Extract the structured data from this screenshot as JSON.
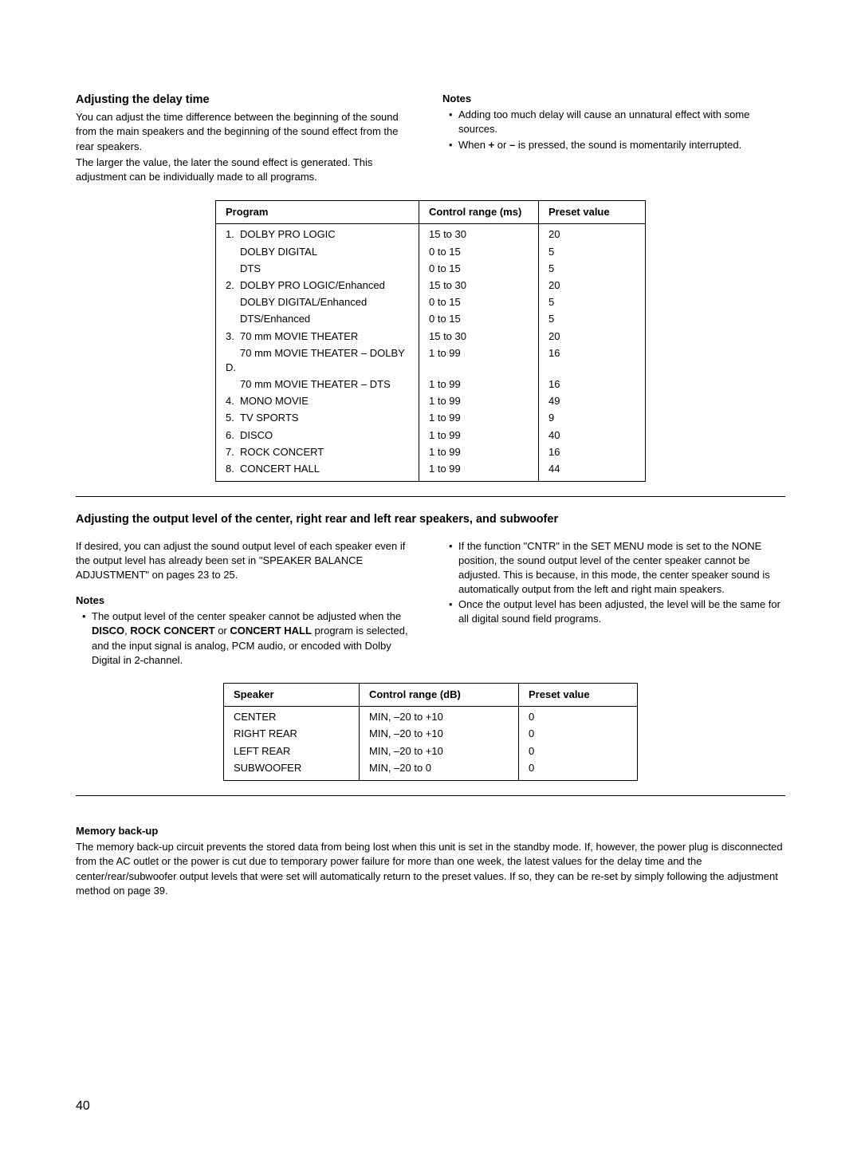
{
  "section1": {
    "heading": "Adjusting the delay time",
    "para1": "You can adjust the time difference between the beginning of the sound from the main speakers and the beginning of the sound effect from the rear speakers.",
    "para2": "The larger the value, the later the sound effect is generated. This adjustment can be individually made to all programs.",
    "notes_heading": "Notes",
    "note1": "Adding too much delay will cause an unnatural effect with some sources.",
    "note2_pre": "When ",
    "note2_plus": "+",
    "note2_mid": " or ",
    "note2_minus": "–",
    "note2_post": " is pressed, the sound is momentarily interrupted."
  },
  "table1": {
    "col1": "Program",
    "col2": "Control range (ms)",
    "col3": "Preset value",
    "rows": [
      {
        "num": "1.",
        "name": "DOLBY PRO LOGIC",
        "range": "15 to 30",
        "preset": "20"
      },
      {
        "num": "",
        "name": "DOLBY DIGITAL",
        "range": "0 to 15",
        "preset": "5"
      },
      {
        "num": "",
        "name": "DTS",
        "range": "0 to 15",
        "preset": "5"
      },
      {
        "num": "2.",
        "name": "DOLBY PRO LOGIC/Enhanced",
        "range": "15 to 30",
        "preset": "20"
      },
      {
        "num": "",
        "name": "DOLBY DIGITAL/Enhanced",
        "range": "0 to 15",
        "preset": "5"
      },
      {
        "num": "",
        "name": "DTS/Enhanced",
        "range": "0 to 15",
        "preset": "5"
      },
      {
        "num": "3.",
        "name": "70 mm MOVIE THEATER",
        "range": "15 to 30",
        "preset": "20"
      },
      {
        "num": "",
        "name": "70 mm MOVIE THEATER – DOLBY D.",
        "range": "1 to 99",
        "preset": "16"
      },
      {
        "num": "",
        "name": "70 mm MOVIE THEATER – DTS",
        "range": "1 to 99",
        "preset": "16"
      },
      {
        "num": "4.",
        "name": "MONO MOVIE",
        "range": "1 to 99",
        "preset": "49"
      },
      {
        "num": "5.",
        "name": "TV SPORTS",
        "range": "1 to 99",
        "preset": "9"
      },
      {
        "num": "6.",
        "name": "DISCO",
        "range": "1 to 99",
        "preset": "40"
      },
      {
        "num": "7.",
        "name": "ROCK CONCERT",
        "range": "1 to 99",
        "preset": "16"
      },
      {
        "num": "8.",
        "name": "CONCERT HALL",
        "range": "1 to 99",
        "preset": "44"
      }
    ]
  },
  "section2": {
    "heading": "Adjusting the output level of the center, right rear and left rear speakers, and subwoofer",
    "para1": "If desired, you can adjust the sound output level of each speaker even if the output level has already been set in \"SPEAKER BALANCE ADJUSTMENT\" on pages 23 to 25.",
    "notes_heading": "Notes",
    "note1_pre": "The output level of the center speaker cannot be adjusted when the ",
    "note1_b1": "DISCO",
    "note1_sep1": ", ",
    "note1_b2": "ROCK CONCERT",
    "note1_sep2": " or ",
    "note1_b3": "CONCERT HALL",
    "note1_post": " program is selected, and the input signal is analog, PCM audio, or encoded with Dolby Digital in 2-channel.",
    "note2": "If the function \"CNTR\" in the SET MENU mode is set to the NONE position, the sound output level of the center speaker cannot be adjusted.  This is because, in this mode, the center speaker sound is automatically output from the left and right main speakers.",
    "note3": "Once the output level has been adjusted, the level will be the same for all digital sound field programs."
  },
  "table2": {
    "col1": "Speaker",
    "col2": "Control range (dB)",
    "col3": "Preset value",
    "rows": [
      {
        "name": "CENTER",
        "range": "MIN, –20 to +10",
        "preset": "0"
      },
      {
        "name": "RIGHT REAR",
        "range": "MIN, –20 to +10",
        "preset": "0"
      },
      {
        "name": "LEFT REAR",
        "range": "MIN, –20 to +10",
        "preset": "0"
      },
      {
        "name": "SUBWOOFER",
        "range": "MIN, –20 to 0",
        "preset": "0"
      }
    ]
  },
  "memory": {
    "heading": "Memory back-up",
    "text": "The memory back-up circuit prevents the stored data from being lost when this unit is set in the standby mode.  If, however, the power plug is disconnected from the AC outlet or the power is cut due to temporary power failure for more than one week, the latest values for the delay time and the center/rear/subwoofer output levels that were set will automatically return to the preset values.  If so, they can be re-set by simply following the adjustment method on page 39."
  },
  "page_number": "40"
}
